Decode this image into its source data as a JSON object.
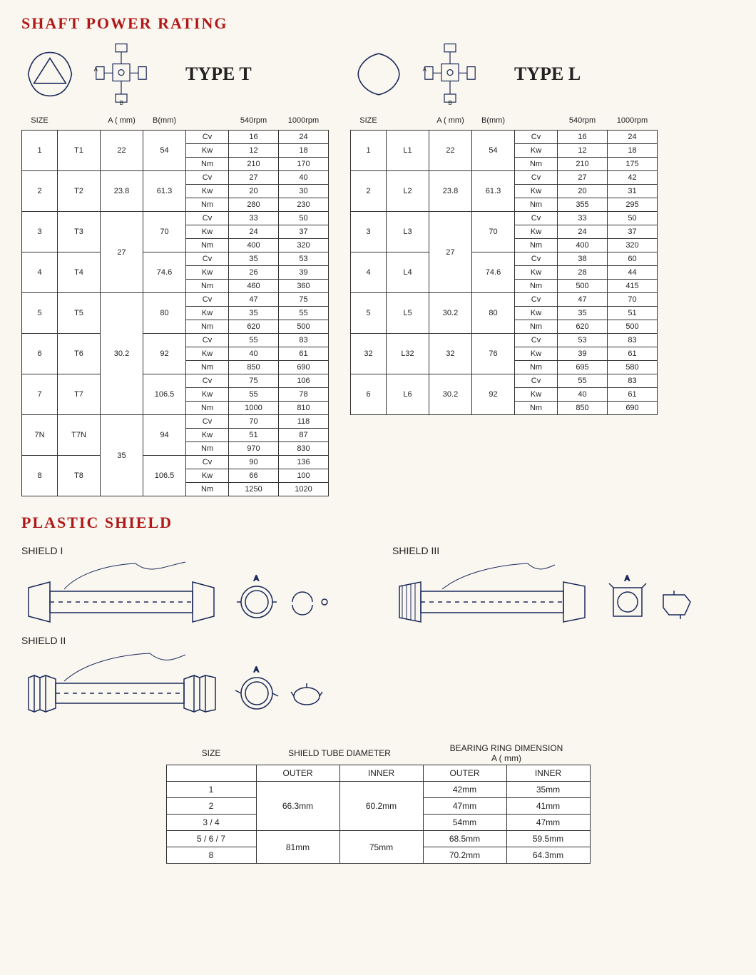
{
  "titles": {
    "shaft": "SHAFT POWER RATING",
    "plastic": "PLASTIC SHIELD"
  },
  "typeLabels": {
    "t": "TYPE T",
    "l": "TYPE L"
  },
  "headers": {
    "size": "SIZE",
    "a": "A ( mm)",
    "b": "B(mm)",
    "rpm540": "540rpm",
    "rpm1000": "1000rpm"
  },
  "units": [
    "Cv",
    "Kw",
    "Nm"
  ],
  "typeT": [
    {
      "size": "1",
      "code": "T1",
      "a": "22",
      "b": "54",
      "v": [
        [
          "16",
          "24"
        ],
        [
          "12",
          "18"
        ],
        [
          "210",
          "170"
        ]
      ]
    },
    {
      "size": "2",
      "code": "T2",
      "a": "23.8",
      "b": "61.3",
      "v": [
        [
          "27",
          "40"
        ],
        [
          "20",
          "30"
        ],
        [
          "280",
          "230"
        ]
      ]
    },
    {
      "size": "3",
      "code": "T3",
      "a": "27",
      "aspan": 2,
      "b": "70",
      "v": [
        [
          "33",
          "50"
        ],
        [
          "24",
          "37"
        ],
        [
          "400",
          "320"
        ]
      ]
    },
    {
      "size": "4",
      "code": "T4",
      "b": "74.6",
      "v": [
        [
          "35",
          "53"
        ],
        [
          "26",
          "39"
        ],
        [
          "460",
          "360"
        ]
      ]
    },
    {
      "size": "5",
      "code": "T5",
      "a": "30.2",
      "aspan": 3,
      "b": "80",
      "v": [
        [
          "47",
          "75"
        ],
        [
          "35",
          "55"
        ],
        [
          "620",
          "500"
        ]
      ]
    },
    {
      "size": "6",
      "code": "T6",
      "b": "92",
      "v": [
        [
          "55",
          "83"
        ],
        [
          "40",
          "61"
        ],
        [
          "850",
          "690"
        ]
      ]
    },
    {
      "size": "7",
      "code": "T7",
      "b": "106.5",
      "v": [
        [
          "75",
          "106"
        ],
        [
          "55",
          "78"
        ],
        [
          "1000",
          "810"
        ]
      ]
    },
    {
      "size": "7N",
      "code": "T7N",
      "a": "35",
      "aspan": 2,
      "b": "94",
      "v": [
        [
          "70",
          "118"
        ],
        [
          "51",
          "87"
        ],
        [
          "970",
          "830"
        ]
      ]
    },
    {
      "size": "8",
      "code": "T8",
      "b": "106.5",
      "v": [
        [
          "90",
          "136"
        ],
        [
          "66",
          "100"
        ],
        [
          "1250",
          "1020"
        ]
      ]
    }
  ],
  "typeL": [
    {
      "size": "1",
      "code": "L1",
      "a": "22",
      "b": "54",
      "v": [
        [
          "16",
          "24"
        ],
        [
          "12",
          "18"
        ],
        [
          "210",
          "175"
        ]
      ]
    },
    {
      "size": "2",
      "code": "L2",
      "a": "23.8",
      "b": "61.3",
      "v": [
        [
          "27",
          "42"
        ],
        [
          "20",
          "31"
        ],
        [
          "355",
          "295"
        ]
      ]
    },
    {
      "size": "3",
      "code": "L3",
      "a": "27",
      "aspan": 2,
      "b": "70",
      "v": [
        [
          "33",
          "50"
        ],
        [
          "24",
          "37"
        ],
        [
          "400",
          "320"
        ]
      ]
    },
    {
      "size": "4",
      "code": "L4",
      "b": "74.6",
      "v": [
        [
          "38",
          "60"
        ],
        [
          "28",
          "44"
        ],
        [
          "500",
          "415"
        ]
      ]
    },
    {
      "size": "5",
      "code": "L5",
      "a": "30.2",
      "b": "80",
      "v": [
        [
          "47",
          "70"
        ],
        [
          "35",
          "51"
        ],
        [
          "620",
          "500"
        ]
      ]
    },
    {
      "size": "32",
      "code": "L32",
      "a": "32",
      "b": "76",
      "v": [
        [
          "53",
          "83"
        ],
        [
          "39",
          "61"
        ],
        [
          "695",
          "580"
        ]
      ]
    },
    {
      "size": "6",
      "code": "L6",
      "a": "30.2",
      "b": "92",
      "v": [
        [
          "55",
          "83"
        ],
        [
          "40",
          "61"
        ],
        [
          "850",
          "690"
        ]
      ]
    }
  ],
  "shieldLabels": {
    "s1": "SHIELD I",
    "s2": "SHIELD II",
    "s3": "SHIELD III"
  },
  "shieldTable": {
    "headers": {
      "size": "SIZE",
      "tube": "SHIELD TUBE DIAMETER",
      "ring": "BEARING RING DIMENSION",
      "ringA": "A ( mm)",
      "outer": "OUTER",
      "inner": "INNER"
    },
    "rows": [
      {
        "size": "1",
        "outer": "66.3mm",
        "outerSpan": 3,
        "inner": "60.2mm",
        "innerSpan": 3,
        "ringO": "42mm",
        "ringI": "35mm"
      },
      {
        "size": "2",
        "ringO": "47mm",
        "ringI": "41mm"
      },
      {
        "size": "3 / 4",
        "ringO": "54mm",
        "ringI": "47mm"
      },
      {
        "size": "5 / 6 / 7",
        "outer": "81mm",
        "outerSpan": 2,
        "inner": "75mm",
        "innerSpan": 2,
        "ringO": "68.5mm",
        "ringI": "59.5mm"
      },
      {
        "size": "8",
        "ringO": "70.2mm",
        "ringI": "64.3mm"
      }
    ]
  },
  "colors": {
    "title": "#b01818",
    "line": "#1b2a5a",
    "border": "#333333",
    "bg": "#faf7f0"
  }
}
